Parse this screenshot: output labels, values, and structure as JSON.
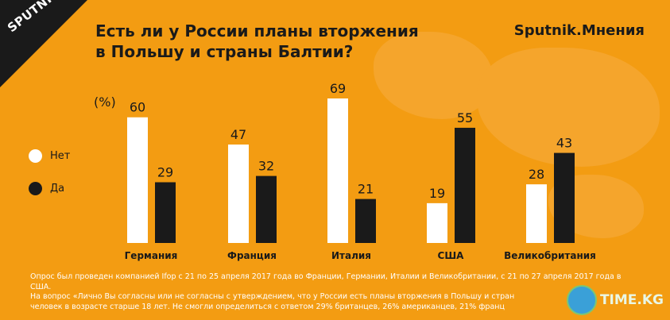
{
  "header": {
    "brand_logo_text": "SPUTNIK",
    "title_line1": "Есть ли у России планы вторжения",
    "title_line2": "в Польшу и страны Балтии?",
    "brand": "Sputnik.Мнения"
  },
  "colors": {
    "background": "#f39c12",
    "net": "#ffffff",
    "da": "#1a1a1a"
  },
  "legend": {
    "net": "Нет",
    "da": "Да"
  },
  "chart_data": {
    "type": "bar",
    "unit_label": "(%)",
    "categories": [
      "Германия",
      "Франция",
      "Италия",
      "США",
      "Великобритания"
    ],
    "series": [
      {
        "name": "Нет",
        "values": [
          60,
          47,
          69,
          19,
          28
        ]
      },
      {
        "name": "Да",
        "values": [
          29,
          32,
          21,
          55,
          43
        ]
      }
    ],
    "ylim": [
      0,
      69
    ],
    "grid": false,
    "legend_position": "left"
  },
  "footnote": {
    "line1": "Опрос был проведен компанией Ifop с 21 по 25 апреля 2017 года во Франции, Германии, Италии и Великобритании, с 21 по 27 апреля 2017 года в США.",
    "line2": "На вопрос «Лично Вы согласны или не согласны с утверждением, что у России есть планы вторжения в Польшу и стран",
    "line3": "человек в возрасте старше 18 лет. Не смогли определиться с ответом 29% британцев, 26% американцев, 21% франц"
  },
  "watermark": {
    "text": "TIME.KG"
  }
}
